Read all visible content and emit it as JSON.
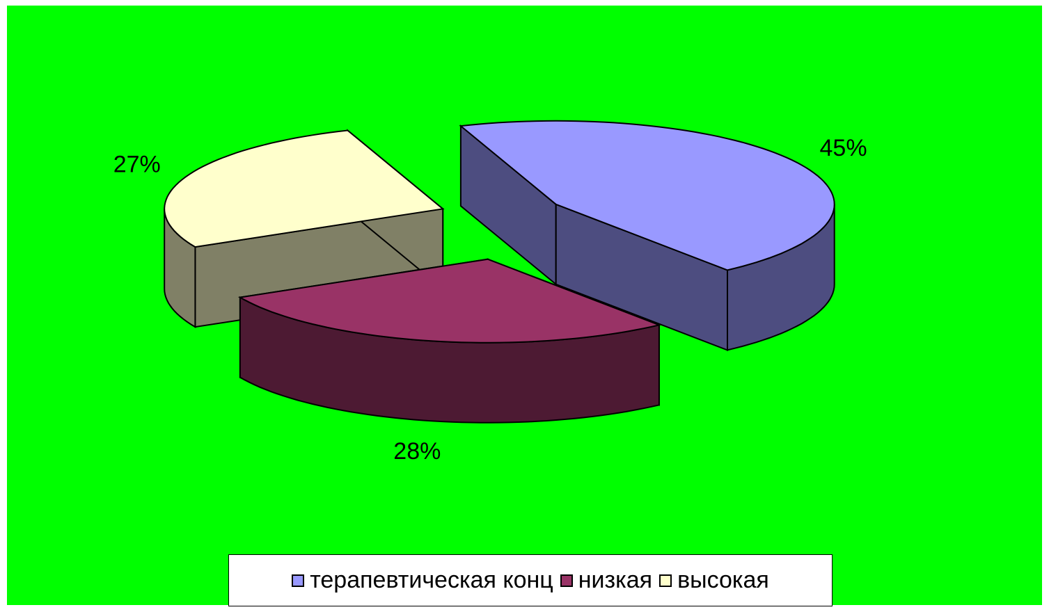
{
  "chart_data": {
    "type": "pie",
    "categories": [
      "терапевтическая конц",
      "низкая",
      "высокая"
    ],
    "values": [
      45,
      28,
      27
    ],
    "value_labels": [
      "45%",
      "28%",
      "27%"
    ],
    "colors": [
      "#9999ff",
      "#993366",
      "#ffffcc"
    ],
    "legend": "bottom"
  }
}
